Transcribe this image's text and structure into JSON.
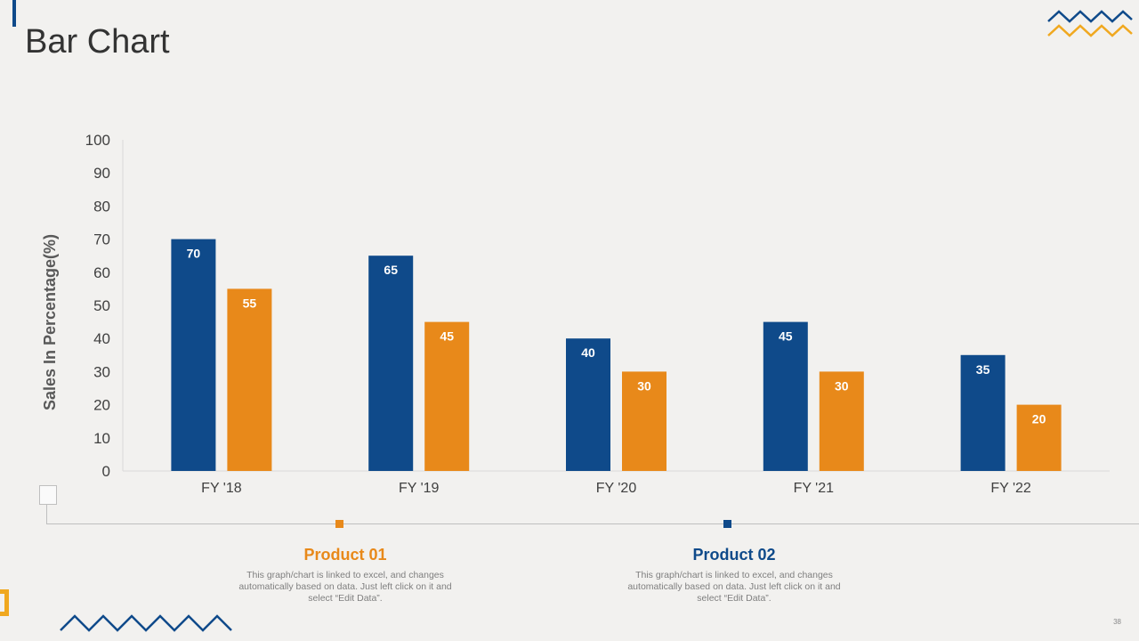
{
  "slide": {
    "title": "Bar Chart",
    "page_number": "38"
  },
  "colors": {
    "product01": "#e8891a",
    "product02": "#0f4a8a"
  },
  "legend": [
    {
      "name": "Product 01",
      "description": "This graph/chart is linked to excel, and changes automatically based on data. Just left click on it and select “Edit Data”."
    },
    {
      "name": "Product 02",
      "description": "This graph/chart is linked to excel, and changes automatically based on data. Just left click on it and select “Edit Data”."
    }
  ],
  "chart_data": {
    "type": "bar",
    "title": "",
    "xlabel": "",
    "ylabel": "Sales In Percentage(%)",
    "ylim": [
      0,
      100
    ],
    "yticks": [
      0,
      10,
      20,
      30,
      40,
      50,
      60,
      70,
      80,
      90,
      100
    ],
    "categories": [
      "FY '18",
      "FY '19",
      "FY '20",
      "FY '21",
      "FY '22"
    ],
    "series": [
      {
        "name": "Product 02",
        "color": "#0f4a8a",
        "values": [
          70,
          65,
          40,
          45,
          35
        ]
      },
      {
        "name": "Product 01",
        "color": "#e8891a",
        "values": [
          55,
          45,
          30,
          30,
          20
        ]
      }
    ]
  }
}
